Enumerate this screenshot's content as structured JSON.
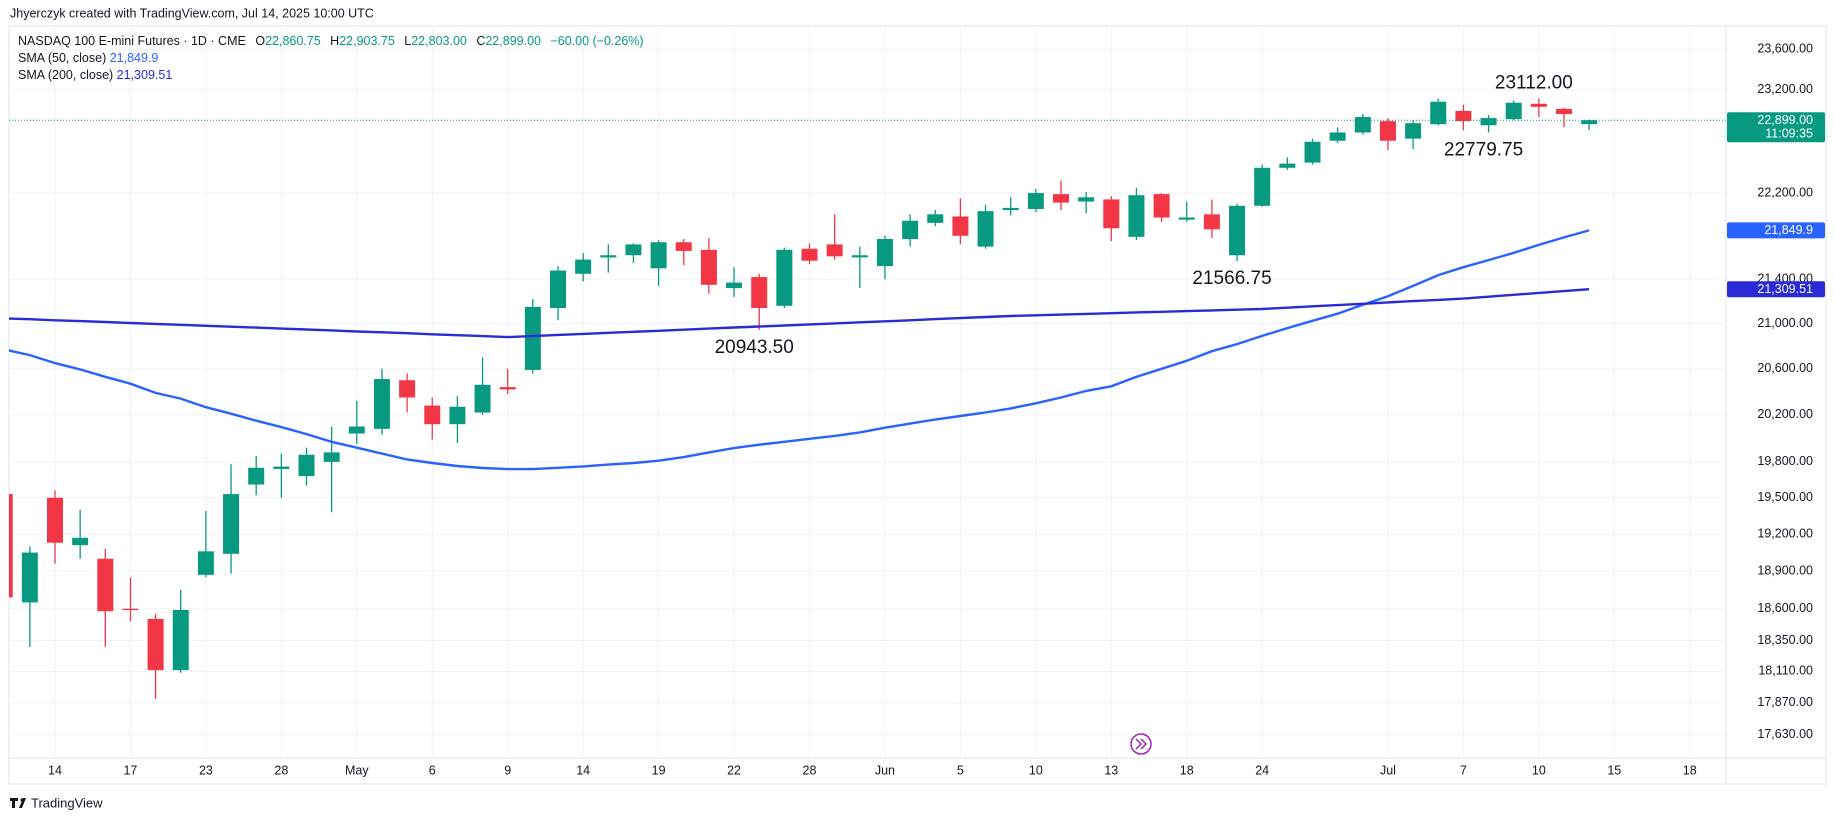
{
  "chart_data": {
    "type": "candlestick",
    "title": "Jhyerczyk created with TradingView.com, Jul 14, 2025 10:00 UTC",
    "symbol": "NASDAQ 100 E-mini Futures · 1D · CME",
    "ohlc_legend": [
      {
        "key": "O",
        "label": "22,860.75"
      },
      {
        "key": "H",
        "label": "22,903.75"
      },
      {
        "key": "L",
        "label": "22,803.00"
      },
      {
        "key": "C",
        "label": "22,899.00"
      }
    ],
    "change": "−60.00 (−0.26%)",
    "countdown": "11:09:35",
    "footer": "TradingView",
    "up_color": "#089981",
    "down_color": "#f23645",
    "log_scale": true,
    "grid": true,
    "ylim": [
      17455,
      23836
    ],
    "yticks": [
      {
        "value": 23600,
        "label": "23,600.00"
      },
      {
        "value": 23200,
        "label": "23,200.00"
      },
      {
        "value": 22200,
        "label": "22,200.00"
      },
      {
        "value": 21400,
        "label": "21,400.00"
      },
      {
        "value": 21000,
        "label": "21,000.00"
      },
      {
        "value": 20600,
        "label": "20,600.00"
      },
      {
        "value": 20200,
        "label": "20,200.00"
      },
      {
        "value": 19800,
        "label": "19,800.00"
      },
      {
        "value": 19500,
        "label": "19,500.00"
      },
      {
        "value": 19200,
        "label": "19,200.00"
      },
      {
        "value": 18900,
        "label": "18,900.00"
      },
      {
        "value": 18600,
        "label": "18,600.00"
      },
      {
        "value": 18350,
        "label": "18,350.00"
      },
      {
        "value": 18110,
        "label": "18,110.00"
      },
      {
        "value": 17870,
        "label": "17,870.00"
      },
      {
        "value": 17630,
        "label": "17,630.00"
      }
    ],
    "categories": [
      null,
      null,
      "14",
      null,
      null,
      "17",
      null,
      null,
      "23",
      null,
      null,
      "28",
      null,
      null,
      "May",
      null,
      null,
      "6",
      null,
      null,
      "9",
      null,
      null,
      "14",
      null,
      null,
      "19",
      null,
      null,
      "22",
      null,
      null,
      "28",
      null,
      null,
      "Jun",
      null,
      null,
      "5",
      null,
      null,
      "10",
      null,
      null,
      "13",
      null,
      null,
      "18",
      null,
      null,
      "24",
      null,
      null,
      null,
      null,
      "Jul",
      null,
      null,
      "7",
      null,
      null,
      "10",
      null,
      null,
      "15",
      null,
      null,
      "18"
    ],
    "open": [
      19530,
      18650,
      19500,
      19110,
      19000,
      18600,
      18520,
      18120,
      18870,
      19040,
      19610,
      19740,
      19680,
      19800,
      20040,
      20080,
      20500,
      20280,
      20120,
      20220,
      20440,
      20590,
      21140,
      21450,
      21600,
      21620,
      21500,
      21740,
      21670,
      21320,
      21420,
      21160,
      21680,
      21720,
      21600,
      21520,
      21770,
      21920,
      21980,
      21700,
      22040,
      22050,
      22190,
      22120,
      22140,
      21790,
      22190,
      21950,
      22000,
      21620,
      22080,
      22440,
      22490,
      22700,
      22780,
      22890,
      22720,
      22860,
      22990,
      22850,
      22910,
      23060,
      23010,
      22860.75,
      null,
      null,
      null,
      null
    ],
    "high": [
      19560,
      19100,
      19560,
      19400,
      19080,
      18850,
      18560,
      18750,
      19390,
      19780,
      19850,
      19870,
      19920,
      20100,
      20320,
      20600,
      20560,
      20350,
      20360,
      20700,
      20600,
      21220,
      21520,
      21640,
      21720,
      21730,
      21760,
      21770,
      21780,
      21510,
      21450,
      21690,
      21730,
      22000,
      21700,
      21800,
      22000,
      22040,
      22150,
      22090,
      22160,
      22240,
      22320,
      22210,
      22170,
      22250,
      22200,
      22120,
      22140,
      22100,
      22470,
      22540,
      22720,
      22830,
      22960,
      22920,
      22900,
      23110,
      23050,
      22950,
      23090,
      23112,
      23020,
      22903.75,
      null,
      null,
      null,
      null
    ],
    "low": [
      18650,
      18300,
      18960,
      19000,
      18300,
      18500,
      17900,
      18100,
      18850,
      18880,
      19520,
      19500,
      19600,
      19380,
      19950,
      20030,
      20220,
      19990,
      19960,
      20200,
      20380,
      20560,
      21030,
      21380,
      21460,
      21550,
      21340,
      21530,
      21270,
      21240,
      20943.5,
      21140,
      21540,
      21580,
      21320,
      21400,
      21700,
      21890,
      21720,
      21680,
      21990,
      22020,
      22040,
      22010,
      21750,
      21760,
      21930,
      21930,
      21780,
      21566.75,
      22070,
      22420,
      22470,
      22680,
      22760,
      22610,
      22620,
      22850,
      22800,
      22779.75,
      22900,
      22930,
      22830,
      22803,
      null,
      null,
      null,
      null
    ],
    "close": [
      18690,
      19050,
      19130,
      19170,
      18580,
      18590,
      18120,
      18590,
      19060,
      19530,
      19750,
      19760,
      19860,
      19880,
      20100,
      20510,
      20350,
      20120,
      20270,
      20460,
      20420,
      21150,
      21480,
      21580,
      21620,
      21720,
      21740,
      21660,
      21350,
      21370,
      21140,
      21670,
      21570,
      21610,
      21620,
      21770,
      21940,
      22000,
      21800,
      22030,
      22060,
      22200,
      22110,
      22160,
      21870,
      22180,
      21970,
      21970,
      21860,
      22080,
      22440,
      22480,
      22690,
      22780,
      22930,
      22700,
      22870,
      23080,
      22890,
      22920,
      23070,
      23030,
      22959,
      22899,
      null,
      null,
      null,
      null
    ],
    "high_labels": [
      null,
      null,
      null,
      null,
      null,
      null,
      null,
      null,
      null,
      null,
      null,
      null,
      null,
      null,
      null,
      null,
      null,
      null,
      null,
      null,
      null,
      null,
      null,
      null,
      null,
      null,
      null,
      null,
      null,
      null,
      null,
      null,
      null,
      null,
      null,
      null,
      null,
      null,
      null,
      null,
      null,
      null,
      null,
      null,
      null,
      null,
      null,
      null,
      null,
      null,
      null,
      null,
      null,
      null,
      null,
      null,
      null,
      null,
      null,
      null,
      null,
      "23112.00",
      null,
      null,
      null,
      null,
      null,
      null
    ],
    "low_labels": [
      null,
      null,
      null,
      null,
      null,
      null,
      null,
      null,
      null,
      null,
      null,
      null,
      null,
      null,
      null,
      null,
      null,
      null,
      null,
      null,
      null,
      null,
      null,
      null,
      null,
      null,
      null,
      null,
      null,
      null,
      "20943.50",
      null,
      null,
      null,
      null,
      null,
      null,
      null,
      null,
      null,
      null,
      null,
      null,
      null,
      null,
      null,
      null,
      null,
      null,
      "21566.75",
      null,
      null,
      null,
      null,
      null,
      null,
      null,
      null,
      null,
      "22779.75",
      null,
      null,
      null,
      null,
      null,
      null,
      null,
      null
    ],
    "series": [
      {
        "name": "SMA (50, close)",
        "color": "#2962ff",
        "value_label": "21,849.9",
        "values": [
          20770,
          20720,
          20650,
          20595,
          20530,
          20470,
          20390,
          20340,
          20266,
          20210,
          20150,
          20095,
          20035,
          19970,
          19920,
          19870,
          19820,
          19790,
          19765,
          19748,
          19739,
          19739,
          19750,
          19762,
          19777,
          19790,
          19810,
          19840,
          19880,
          19916,
          19945,
          19970,
          19995,
          20020,
          20050,
          20090,
          20125,
          20160,
          20190,
          20220,
          20256,
          20300,
          20350,
          20407,
          20447,
          20530,
          20600,
          20670,
          20755,
          20818,
          20890,
          20960,
          21025,
          21089,
          21170,
          21246,
          21340,
          21438,
          21510,
          21575,
          21642,
          21715,
          21785,
          21849.9,
          null,
          null,
          null,
          null
        ]
      },
      {
        "name": "SMA (200, close)",
        "color": "#2a2ad6",
        "value_label": "21,309.51",
        "values": [
          21047,
          21039,
          21030,
          21022,
          21014,
          21005,
          20997,
          20989,
          20980,
          20972,
          20964,
          20955,
          20947,
          20939,
          20930,
          20922,
          20914,
          20905,
          20897,
          20889,
          20880,
          20889,
          20899,
          20908,
          20918,
          20927,
          20936,
          20946,
          20955,
          20965,
          20974,
          20983,
          20993,
          21002,
          21012,
          21021,
          21030,
          21040,
          21049,
          21059,
          21068,
          21074,
          21081,
          21087,
          21093,
          21100,
          21106,
          21112,
          21118,
          21125,
          21131,
          21143,
          21155,
          21166,
          21178,
          21190,
          21202,
          21213,
          21225,
          21242,
          21259,
          21276,
          21293,
          21309.51,
          null,
          null,
          null,
          null
        ]
      }
    ]
  }
}
